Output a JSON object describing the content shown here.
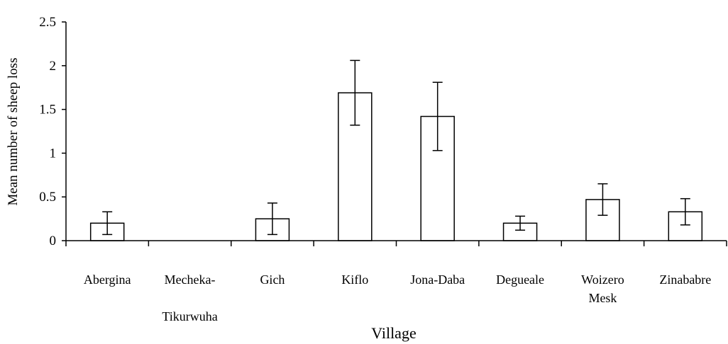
{
  "chart_data": {
    "type": "bar",
    "title": "",
    "xlabel": "Village",
    "ylabel": "Mean number of sheep loss",
    "ylim": [
      0,
      2.5
    ],
    "yticks": [
      0,
      0.5,
      1,
      1.5,
      2,
      2.5
    ],
    "ytick_labels": [
      "0",
      "0.5",
      "1",
      "1.5",
      "2",
      "2.5"
    ],
    "grid": false,
    "legend": "none",
    "categories": [
      [
        "Abergina"
      ],
      [
        "Mecheka-",
        "Tikurwuha"
      ],
      [
        "Gich"
      ],
      [
        "Kiflo"
      ],
      [
        "Jona-Daba"
      ],
      [
        "Degueale"
      ],
      [
        "Woizero",
        "Mesk"
      ],
      [
        "Zinababre"
      ]
    ],
    "values": [
      0.2,
      0,
      0.25,
      1.69,
      1.42,
      0.2,
      0.47,
      0.33
    ],
    "error": [
      0.13,
      0,
      0.18,
      0.37,
      0.39,
      0.08,
      0.18,
      0.15
    ],
    "bar_fill": "#ffffff",
    "bar_stroke": "#000000"
  }
}
